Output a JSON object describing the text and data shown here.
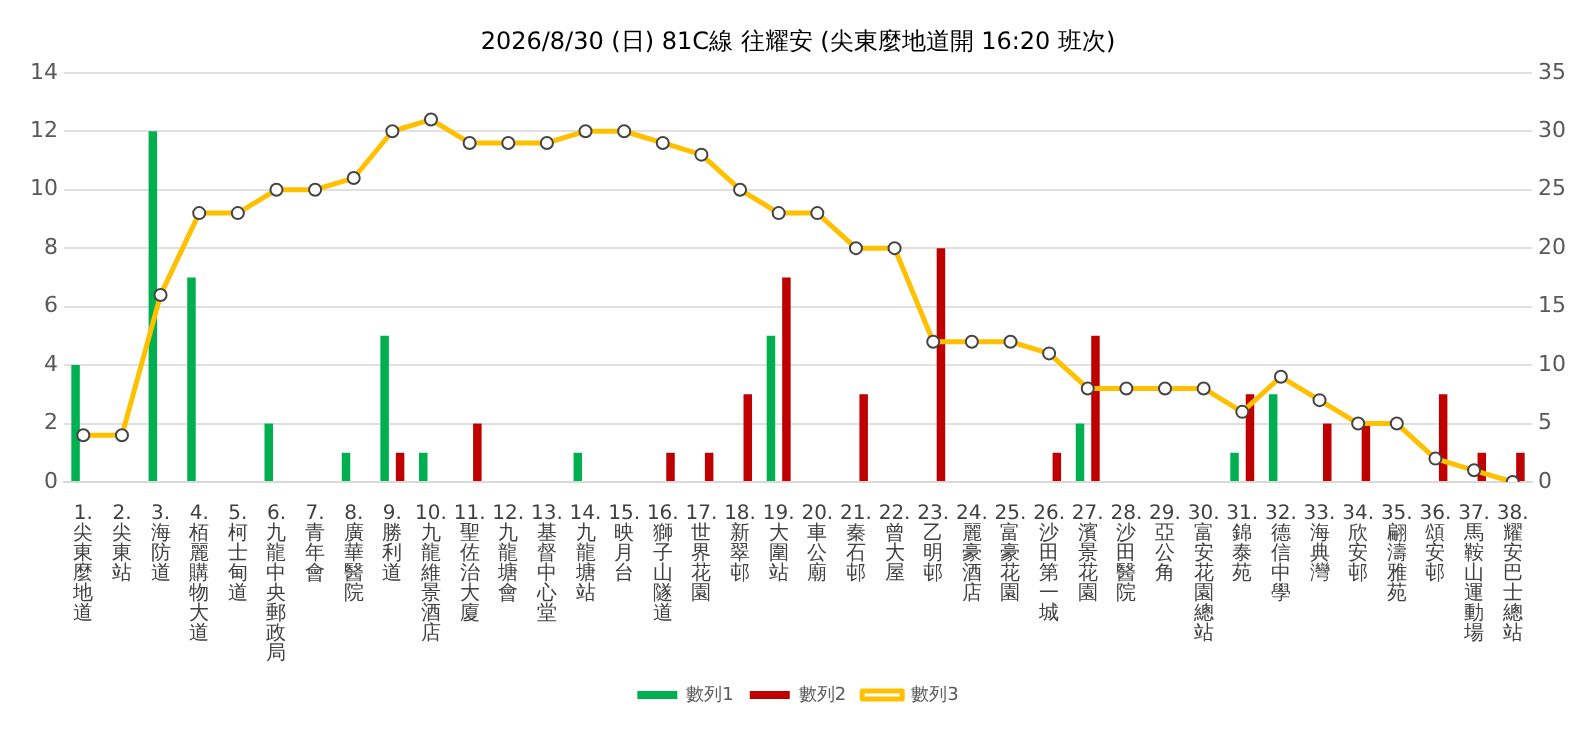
{
  "chart_data": {
    "type": "bar",
    "title": "2026/8/30 (日) 81C線 往耀安 (尖東麼地道開 16:20 班次)",
    "categories": [
      "1. 尖東麼地道",
      "2. 尖東站",
      "3. 海防道",
      "4. 栢麗購物大道",
      "5. 柯士甸道",
      "6. 九龍中央郵政局",
      "7. 青年會",
      "8. 廣華醫院",
      "9. 勝利道",
      "10. 九龍維景酒店",
      "11. 聖佐治大廈",
      "12. 九龍塘會",
      "13. 基督中心堂",
      "14. 九龍塘站",
      "15. 映月台",
      "16. 獅子山隧道",
      "17. 世界花園",
      "18. 新翠邨",
      "19. 大圍站",
      "20. 車公廟",
      "21. 秦石邨",
      "22. 曾大屋",
      "23. 乙明邨",
      "24. 麗豪酒店",
      "25. 富豪花園",
      "26. 沙田第一城",
      "27. 濱景花園",
      "28. 沙田醫院",
      "29. 亞公角",
      "30. 富安花園總站",
      "31. 錦泰苑",
      "32. 德信中學",
      "33. 海典灣",
      "34. 欣安邨",
      "35. 翩濤雅苑",
      "36. 頌安邨",
      "37. 馬鞍山運動場",
      "38. 耀安巴士總站"
    ],
    "series": [
      {
        "name": "數列1",
        "color": "#00b050",
        "values": [
          4,
          0,
          12,
          7,
          0,
          2,
          0,
          1,
          5,
          1,
          0,
          0,
          0,
          1,
          0,
          0,
          0,
          0,
          5,
          0,
          0,
          0,
          0,
          0,
          0,
          0,
          2,
          0,
          0,
          0,
          1,
          3,
          0,
          0,
          0,
          0,
          0,
          0
        ]
      },
      {
        "name": "數列2",
        "color": "#c00000",
        "values": [
          0,
          0,
          0,
          0,
          0,
          0,
          0,
          0,
          1,
          0,
          2,
          0,
          0,
          0,
          0,
          1,
          1,
          3,
          7,
          0,
          3,
          0,
          8,
          0,
          0,
          1,
          5,
          0,
          0,
          0,
          3,
          0,
          2,
          2,
          0,
          3,
          1,
          1
        ]
      },
      {
        "name": "數列3",
        "type": "line",
        "axis": "y2",
        "color": "#ffc000",
        "values": [
          4,
          4,
          16,
          23,
          23,
          25,
          25,
          26,
          30,
          31,
          29,
          29,
          29,
          30,
          30,
          29,
          28,
          25,
          23,
          23,
          20,
          20,
          12,
          12,
          12,
          11,
          8,
          8,
          8,
          8,
          6,
          9,
          7,
          5,
          5,
          2,
          1,
          0
        ]
      }
    ],
    "ylim": [
      0,
      14
    ],
    "yticks": [
      0,
      2,
      4,
      6,
      8,
      10,
      12,
      14
    ],
    "y2lim": [
      0,
      35
    ],
    "y2ticks": [
      0,
      5,
      10,
      15,
      20,
      25,
      30,
      35
    ],
    "grid": "y",
    "legend": "bottom",
    "marker": "circle",
    "line_style": "solid"
  }
}
